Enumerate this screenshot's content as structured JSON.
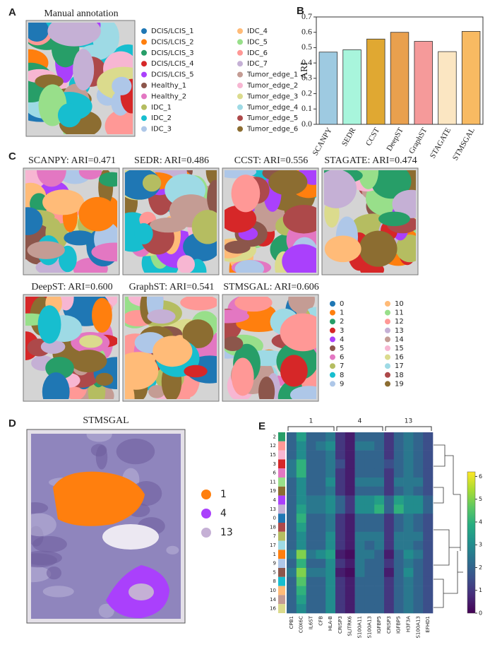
{
  "chart_data": [
    {
      "type": "spatial",
      "panel": "A",
      "title": "Manual annotation",
      "categories": [
        "DCIS/LCIS_1",
        "DCIS/LCIS_2",
        "DCIS/LCIS_3",
        "DCIS/LCIS_4",
        "DCIS/LCIS_5",
        "Healthy_1",
        "Healthy_2",
        "IDC_1",
        "IDC_2",
        "IDC_3",
        "IDC_4",
        "IDC_5",
        "IDC_6",
        "IDC_7",
        "Tumor_edge_1",
        "Tumor_edge_2",
        "Tumor_edge_3",
        "Tumor_edge_4",
        "Tumor_edge_5",
        "Tumor_edge_6"
      ],
      "colors": [
        "#1f77b4",
        "#ff7f0e",
        "#279e68",
        "#d62728",
        "#aa40fc",
        "#8c564b",
        "#e377c2",
        "#b5bd61",
        "#17becf",
        "#aec7e8",
        "#ffbb78",
        "#98df8a",
        "#ff9896",
        "#c5b0d5",
        "#c49c94",
        "#f7b6d2",
        "#dbdb8d",
        "#9edae5",
        "#ad494a",
        "#8c6d31"
      ]
    },
    {
      "type": "bar",
      "panel": "B",
      "ylabel": "ARI",
      "categories": [
        "SCANPY",
        "SEDR",
        "CCST",
        "DeepST",
        "GraphST",
        "STAGATE",
        "STMSGAL"
      ],
      "values": [
        0.471,
        0.486,
        0.556,
        0.6,
        0.541,
        0.474,
        0.606
      ],
      "colors": [
        "#9ecae1",
        "#a8f5dc",
        "#e0a832",
        "#e9a04e",
        "#f59a9a",
        "#fbe6c2",
        "#f8ba62"
      ],
      "ylim": [
        0,
        0.7
      ],
      "yticks": [
        {
          "value": 0,
          "label": "0.0"
        },
        0.1,
        0.2,
        0.3,
        0.4,
        0.5,
        0.6,
        0.7
      ]
    },
    {
      "type": "spatial",
      "panel": "C",
      "maps": [
        {
          "title": "SCANPY: ARI=0.471"
        },
        {
          "title": "SEDR: ARI=0.486"
        },
        {
          "title": "CCST: ARI=0.556"
        },
        {
          "title": "STAGATE: ARI=0.474"
        },
        {
          "title": "DeepST: ARI=0.600"
        },
        {
          "title": "GraphST: ARI=0.541"
        },
        {
          "title": "STMSGAL: ARI=0.606"
        }
      ],
      "categories": [
        "0",
        "1",
        "2",
        "3",
        "4",
        "5",
        "6",
        "7",
        "8",
        "9",
        "10",
        "11",
        "12",
        "13",
        "14",
        "15",
        "16",
        "17",
        "18",
        "19"
      ],
      "colors": [
        "#1f77b4",
        "#ff7f0e",
        "#279e68",
        "#d62728",
        "#aa40fc",
        "#8c564b",
        "#e377c2",
        "#b5bd61",
        "#17becf",
        "#aec7e8",
        "#ffbb78",
        "#98df8a",
        "#ff9896",
        "#c5b0d5",
        "#c49c94",
        "#f7b6d2",
        "#dbdb8d",
        "#9edae5",
        "#ad494a",
        "#8c6d31"
      ]
    },
    {
      "type": "spatial",
      "panel": "D",
      "title": "STMSGAL",
      "categories": [
        "1",
        "4",
        "13"
      ],
      "colors": [
        "#ff7f0e",
        "#aa40fc",
        "#c5b0d5"
      ]
    },
    {
      "type": "heatmap",
      "panel": "E",
      "rows": [
        "2",
        "12",
        "15",
        "3",
        "6",
        "11",
        "19",
        "4",
        "13",
        "0",
        "18",
        "7",
        "17",
        "1",
        "9",
        "5",
        "8",
        "10",
        "14",
        "16"
      ],
      "column_groups": [
        {
          "name": "1",
          "columns": [
            "CPB1",
            "COX6C",
            "IL6ST",
            "CFB",
            "HLA-B"
          ]
        },
        {
          "name": "4",
          "columns": [
            "CRISP3",
            "SLITRK6",
            "S100A11",
            "S100A13",
            "IGFBP5"
          ]
        },
        {
          "name": "13",
          "columns": [
            "CRISP3",
            "IGFBP5",
            "H3F3A",
            "S100A13",
            "EFHD1"
          ]
        }
      ],
      "values": [
        [
          2,
          3.5,
          2,
          2,
          2.5,
          1,
          0.5,
          2,
          2,
          2,
          1,
          2,
          2.5,
          2,
          1.5
        ],
        [
          2,
          3,
          2,
          2.5,
          3,
          1,
          0.5,
          2.5,
          2.5,
          2,
          1,
          2,
          2.5,
          2,
          1.5
        ],
        [
          2,
          3,
          2,
          2,
          2.5,
          1,
          0.5,
          2,
          2,
          2,
          1,
          2,
          2.5,
          2,
          1.5
        ],
        [
          2.5,
          4,
          2,
          2,
          2.5,
          1.5,
          0.5,
          2,
          2,
          2,
          1.5,
          2,
          2.5,
          2,
          1.5
        ],
        [
          2.5,
          4,
          2,
          2,
          2.5,
          1,
          0.5,
          2,
          2,
          2,
          1,
          2,
          2.5,
          2,
          1.5
        ],
        [
          2,
          3,
          2,
          2,
          3,
          1,
          0.5,
          2.5,
          2.5,
          2.5,
          1,
          2.5,
          2.5,
          2.5,
          1.5
        ],
        [
          2,
          3,
          2,
          2,
          2.5,
          1,
          0.5,
          2,
          2,
          2,
          1,
          2,
          2.5,
          2,
          1.5
        ],
        [
          2,
          3,
          2.5,
          2.5,
          3,
          2,
          1,
          3,
          3,
          3.5,
          2,
          3.5,
          3,
          3,
          2
        ],
        [
          2,
          3.5,
          2.5,
          2.5,
          3,
          2,
          1,
          3,
          3,
          4,
          2,
          4,
          3,
          3,
          2
        ],
        [
          2,
          4,
          2,
          2,
          2.5,
          1,
          0.5,
          2,
          2,
          2,
          1,
          2,
          2.5,
          2,
          1.5
        ],
        [
          2,
          3.5,
          2,
          2,
          2.5,
          1,
          0.5,
          2,
          2,
          2,
          1,
          2,
          2.5,
          2,
          1.5
        ],
        [
          2,
          3,
          2,
          2,
          3,
          1,
          0.5,
          2.5,
          2.5,
          2.5,
          1,
          2.5,
          2.5,
          2.5,
          1.5
        ],
        [
          2,
          3,
          2,
          2,
          3,
          1,
          0.5,
          2.5,
          2,
          2.5,
          1,
          2.5,
          2.5,
          2,
          1.5
        ],
        [
          2.5,
          5,
          2.5,
          3,
          3.5,
          0.5,
          0.2,
          2.5,
          2.5,
          2,
          0.5,
          2,
          3,
          2.5,
          1.5
        ],
        [
          2,
          4,
          2,
          2,
          3,
          1,
          0.5,
          2.5,
          2,
          2,
          1,
          2,
          2.5,
          2,
          1.5
        ],
        [
          2.5,
          5,
          2.5,
          2.5,
          3,
          0.5,
          0.2,
          2.5,
          2,
          2,
          0.5,
          2,
          3,
          2,
          1.5
        ],
        [
          2,
          4.5,
          2,
          2,
          3,
          1,
          0.5,
          2,
          2,
          2,
          1,
          2,
          2.5,
          2,
          1.5
        ],
        [
          2,
          4,
          2,
          2,
          3,
          1,
          0.5,
          2,
          2,
          2,
          1,
          2,
          2.5,
          2,
          1.5
        ],
        [
          2,
          3.5,
          2,
          2,
          3,
          1,
          0.5,
          2,
          2,
          2,
          1,
          2,
          2.5,
          2,
          1.5
        ],
        [
          2,
          3,
          2,
          2,
          3,
          1,
          0.5,
          2,
          2,
          2,
          1,
          2,
          2.5,
          2,
          1.5
        ]
      ],
      "clim": [
        0,
        6.2
      ],
      "cticks": [
        0,
        1,
        2,
        3,
        4,
        5,
        6
      ]
    }
  ]
}
